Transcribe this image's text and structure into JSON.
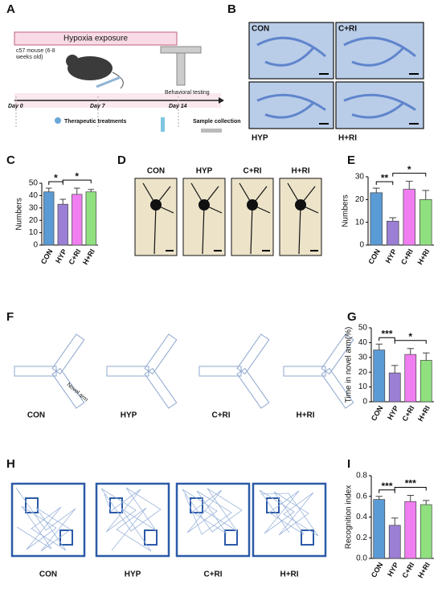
{
  "panels": {
    "labels": [
      "A",
      "B",
      "C",
      "D",
      "E",
      "F",
      "G",
      "H",
      "I"
    ],
    "a": {
      "banner": "Hypoxia exposure",
      "mouse": "c57 mouse (6-8 weeks old)",
      "days": [
        "Day 0",
        "Day 7",
        "Day 14"
      ],
      "behavior": "Behavioral testing",
      "treatment": "Therapeutic treatments",
      "sample": "Sample collection"
    },
    "b": {
      "groups": [
        "CON",
        "C+RI",
        "HYP",
        "H+RI"
      ]
    },
    "d": {
      "groups": [
        "CON",
        "HYP",
        "C+RI",
        "H+RI"
      ]
    },
    "f": {
      "groups": [
        "CON",
        "HYP",
        "C+RI",
        "H+RI"
      ],
      "arm": "Novel arm"
    },
    "h": {
      "groups": [
        "CON",
        "HYP",
        "C+RI",
        "H+RI"
      ]
    }
  },
  "chart_data": [
    {
      "type": "bar",
      "ylabel": "Numbers",
      "categories": [
        "CON",
        "HYP",
        "C+RI",
        "H+RI"
      ],
      "values": [
        43,
        33,
        41,
        43
      ],
      "errors": [
        3,
        4,
        5,
        2
      ],
      "colors": [
        "#5b9bd5",
        "#9b7fd4",
        "#f07ef0",
        "#90e080"
      ],
      "ylim": [
        0,
        50
      ],
      "yticks": [
        0,
        10,
        20,
        30,
        40,
        50
      ],
      "annotations": [
        {
          "text": "*",
          "between": [
            "CON",
            "HYP"
          ]
        },
        {
          "text": "*",
          "between": [
            "HYP",
            "H+RI"
          ]
        }
      ]
    },
    {
      "type": "bar",
      "ylabel": "Numbers",
      "categories": [
        "CON",
        "HYP",
        "C+RI",
        "H+RI"
      ],
      "values": [
        23,
        10.5,
        24.5,
        20
      ],
      "errors": [
        2,
        1.5,
        3.5,
        4
      ],
      "colors": [
        "#5b9bd5",
        "#9b7fd4",
        "#f07ef0",
        "#90e080"
      ],
      "ylim": [
        0,
        30
      ],
      "yticks": [
        0,
        10,
        20,
        30
      ],
      "annotations": [
        {
          "text": "**",
          "between": [
            "CON",
            "HYP"
          ]
        },
        {
          "text": "*",
          "between": [
            "HYP",
            "H+RI"
          ]
        }
      ]
    },
    {
      "type": "bar",
      "ylabel": "Time in novel arm(%)",
      "categories": [
        "CON",
        "HYP",
        "C+RI",
        "H+RI"
      ],
      "values": [
        35,
        19.5,
        32,
        28
      ],
      "errors": [
        4,
        5,
        4,
        5
      ],
      "colors": [
        "#5b9bd5",
        "#9b7fd4",
        "#f07ef0",
        "#90e080"
      ],
      "ylim": [
        0,
        50
      ],
      "yticks": [
        0,
        10,
        20,
        30,
        40,
        50
      ],
      "annotations": [
        {
          "text": "***",
          "between": [
            "CON",
            "HYP"
          ]
        },
        {
          "text": "*",
          "between": [
            "HYP",
            "H+RI"
          ]
        }
      ]
    },
    {
      "type": "bar",
      "ylabel": "Recognition index",
      "categories": [
        "CON",
        "HYP",
        "C+RI",
        "H+RI"
      ],
      "values": [
        0.57,
        0.32,
        0.55,
        0.52
      ],
      "errors": [
        0.03,
        0.07,
        0.06,
        0.04
      ],
      "colors": [
        "#5b9bd5",
        "#9b7fd4",
        "#f07ef0",
        "#90e080"
      ],
      "ylim": [
        0,
        0.8
      ],
      "yticks": [
        {
          "value": 0,
          "label": "0.0"
        },
        0.2,
        0.4,
        0.6,
        0.8
      ],
      "annotations": [
        {
          "text": "***",
          "between": [
            "CON",
            "HYP"
          ]
        },
        {
          "text": "***",
          "between": [
            "HYP",
            "H+RI"
          ]
        }
      ]
    }
  ]
}
